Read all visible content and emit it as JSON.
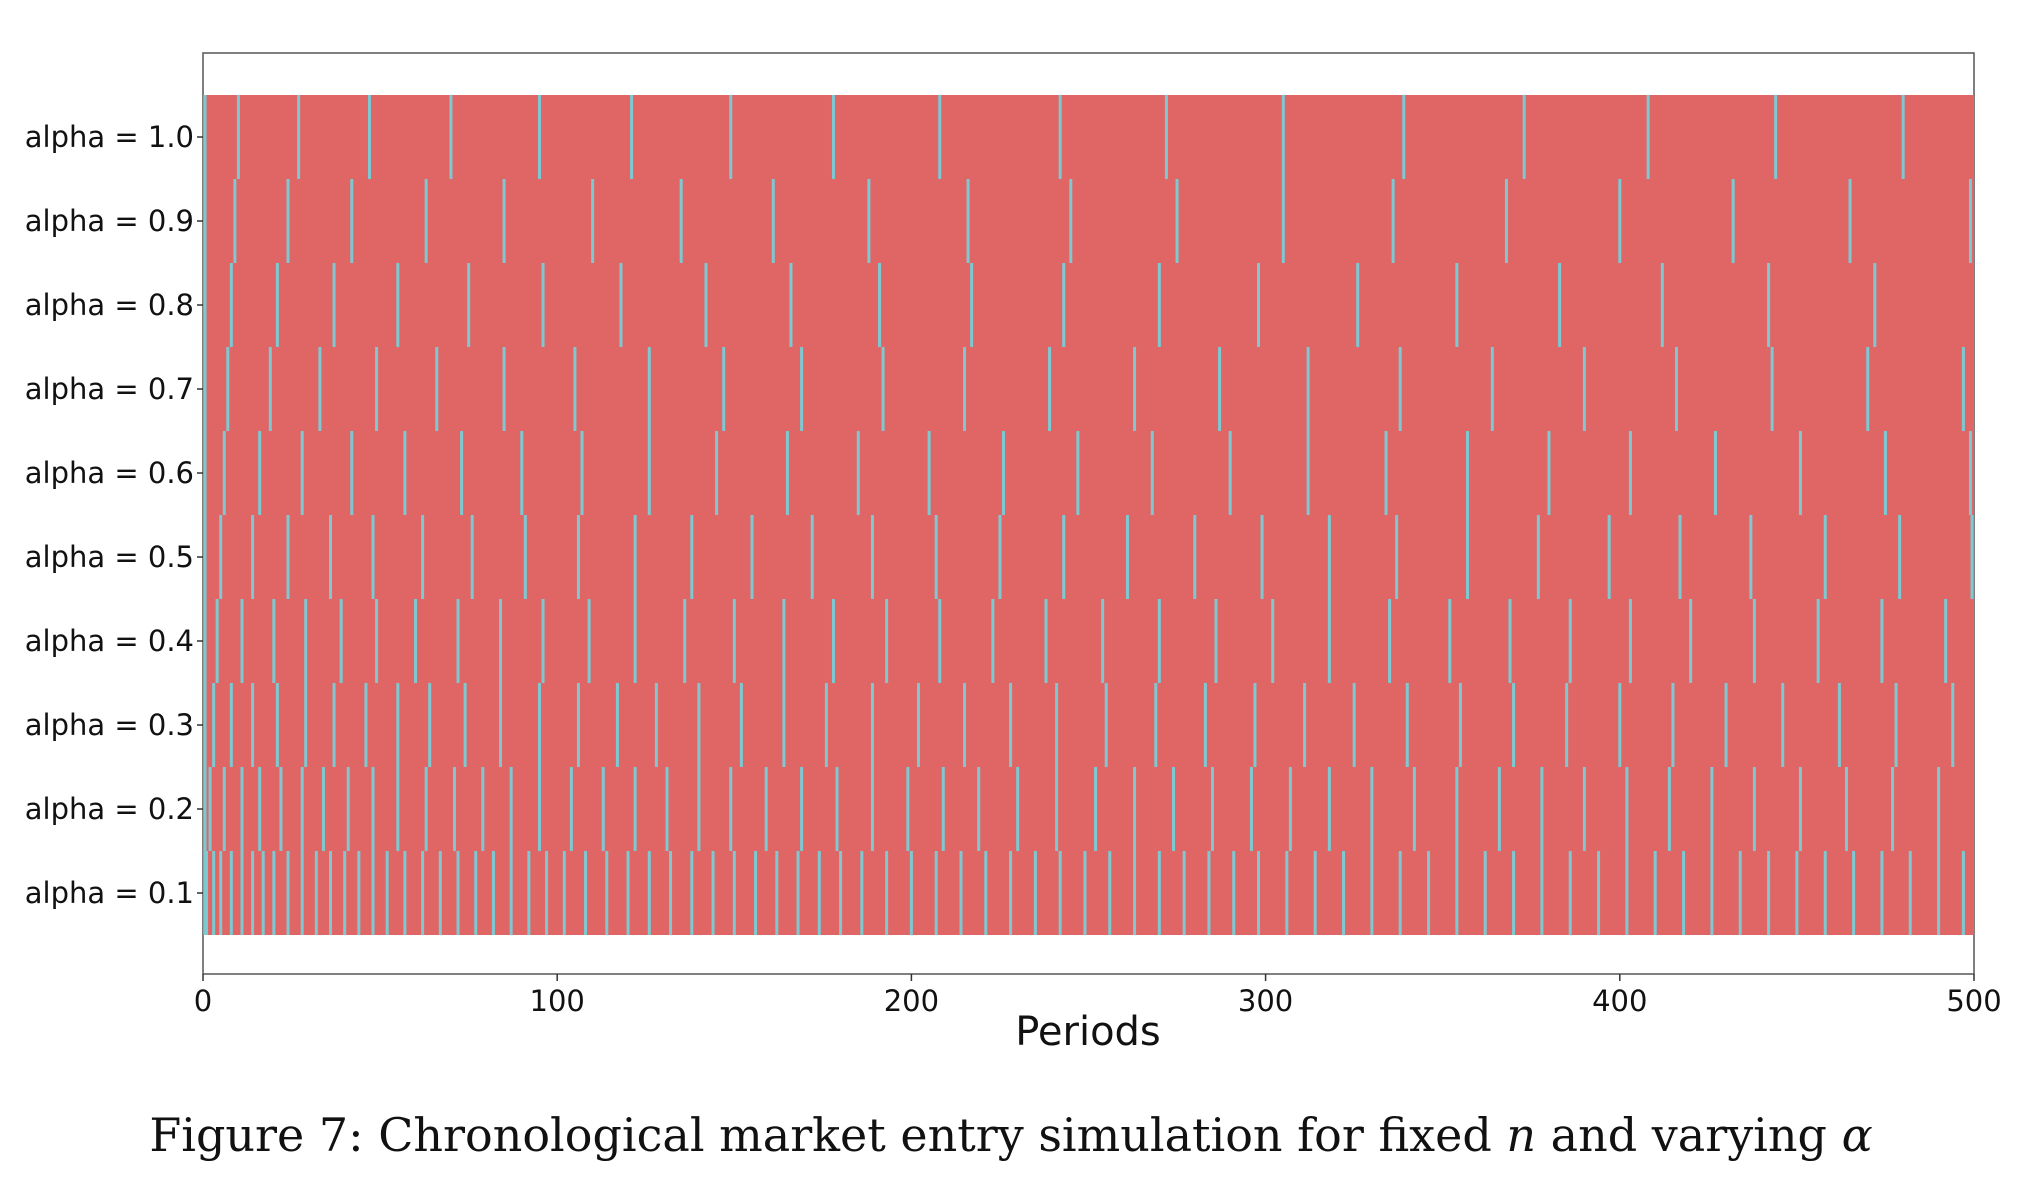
{
  "chart_data": {
    "type": "heatmap",
    "title": "",
    "xlabel": "Periods",
    "ylabel": "",
    "xlim": [
      0,
      500
    ],
    "xticks": [
      0,
      100,
      200,
      300,
      400,
      500
    ],
    "grid": false,
    "legend": "none",
    "colors": {
      "background_state": "#e06666",
      "entry_marker": "#7ec8d1"
    },
    "series": [
      {
        "label": "alpha = 1.0",
        "entries": [
          0,
          10,
          27,
          47,
          70,
          95,
          121,
          149,
          178,
          208,
          242,
          272,
          305,
          339,
          373,
          408,
          444,
          480
        ]
      },
      {
        "label": "alpha = 0.9",
        "entries": [
          0,
          9,
          24,
          42,
          63,
          85,
          110,
          135,
          161,
          188,
          216,
          245,
          275,
          305,
          336,
          368,
          400,
          432,
          465,
          499
        ]
      },
      {
        "label": "alpha = 0.8",
        "entries": [
          0,
          8,
          21,
          37,
          55,
          75,
          96,
          118,
          142,
          166,
          191,
          217,
          243,
          270,
          298,
          326,
          354,
          383,
          412,
          442,
          472
        ]
      },
      {
        "label": "alpha = 0.7",
        "entries": [
          0,
          7,
          19,
          33,
          49,
          66,
          85,
          105,
          126,
          147,
          169,
          192,
          215,
          239,
          263,
          287,
          312,
          338,
          364,
          390,
          416,
          443,
          470,
          497
        ]
      },
      {
        "label": "alpha = 0.6",
        "entries": [
          0,
          6,
          16,
          28,
          42,
          57,
          73,
          90,
          107,
          126,
          145,
          165,
          185,
          205,
          226,
          247,
          268,
          290,
          312,
          334,
          357,
          380,
          403,
          427,
          451,
          475,
          499
        ]
      },
      {
        "label": "alpha = 0.5",
        "entries": [
          0,
          5,
          14,
          24,
          36,
          48,
          62,
          76,
          91,
          106,
          122,
          138,
          155,
          172,
          189,
          207,
          225,
          243,
          261,
          280,
          299,
          318,
          337,
          357,
          377,
          397,
          417,
          437,
          458,
          479,
          500
        ]
      },
      {
        "label": "alpha = 0.4",
        "entries": [
          0,
          4,
          11,
          20,
          29,
          39,
          49,
          60,
          72,
          84,
          96,
          109,
          122,
          136,
          150,
          164,
          178,
          193,
          208,
          223,
          238,
          254,
          270,
          286,
          302,
          318,
          335,
          352,
          369,
          386,
          403,
          420,
          438,
          456,
          474,
          492
        ]
      },
      {
        "label": "alpha = 0.3",
        "entries": [
          0,
          3,
          8,
          14,
          21,
          29,
          37,
          46,
          55,
          64,
          74,
          84,
          95,
          106,
          117,
          128,
          140,
          152,
          164,
          176,
          189,
          202,
          215,
          228,
          241,
          255,
          269,
          283,
          297,
          311,
          325,
          340,
          355,
          370,
          385,
          400,
          415,
          430,
          446,
          462,
          478,
          494
        ]
      },
      {
        "label": "alpha = 0.2",
        "entries": [
          0,
          2,
          6,
          11,
          16,
          22,
          28,
          34,
          41,
          48,
          55,
          63,
          71,
          79,
          87,
          95,
          104,
          113,
          122,
          131,
          140,
          149,
          159,
          169,
          179,
          189,
          199,
          209,
          219,
          230,
          241,
          252,
          263,
          274,
          285,
          296,
          307,
          318,
          330,
          342,
          354,
          366,
          378,
          390,
          402,
          414,
          426,
          438,
          451,
          464,
          477,
          490
        ]
      },
      {
        "label": "alpha = 0.1",
        "entries": [
          0,
          1,
          3,
          5,
          8,
          11,
          14,
          17,
          20,
          24,
          28,
          32,
          36,
          40,
          44,
          48,
          52,
          57,
          62,
          67,
          72,
          77,
          82,
          87,
          92,
          97,
          102,
          108,
          114,
          120,
          126,
          132,
          138,
          144,
          150,
          156,
          162,
          168,
          174,
          180,
          186,
          193,
          200,
          207,
          214,
          221,
          228,
          235,
          242,
          249,
          256,
          263,
          270,
          277,
          284,
          291,
          298,
          306,
          314,
          322,
          330,
          338,
          346,
          354,
          362,
          370,
          378,
          386,
          394,
          402,
          410,
          418,
          426,
          434,
          442,
          450,
          458,
          466,
          474,
          482,
          490,
          497
        ]
      }
    ]
  },
  "caption": {
    "prefix": "Figure 7: Chronological market entry simulation for fixed ",
    "n": "n",
    "middle": " and varying ",
    "alpha": "α"
  }
}
